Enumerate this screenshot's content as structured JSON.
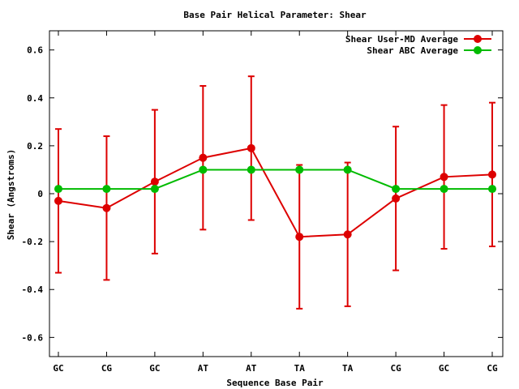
{
  "chart_data": {
    "type": "line",
    "title": "Base Pair Helical Parameter: Shear",
    "xlabel": "Sequence Base Pair",
    "ylabel": "Shear (Angstroms)",
    "categories": [
      "GC",
      "CG",
      "GC",
      "AT",
      "AT",
      "TA",
      "TA",
      "CG",
      "GC",
      "CG"
    ],
    "ylim": [
      -0.68,
      0.68
    ],
    "yticks": [
      -0.6,
      -0.4,
      -0.2,
      0,
      0.2,
      0.4,
      0.6
    ],
    "ytick_labels": [
      "-0.6",
      "-0.4",
      "-0.2",
      "0",
      "0.2",
      "0.4",
      "0.6"
    ],
    "grid": false,
    "legend_position": "top-right",
    "series": [
      {
        "name": "Shear User-MD Average",
        "color": "#dd0000",
        "values": [
          -0.03,
          -0.06,
          0.05,
          0.15,
          0.19,
          -0.18,
          -0.17,
          -0.02,
          0.07,
          0.08
        ],
        "error_low": [
          -0.33,
          -0.36,
          -0.25,
          -0.15,
          -0.11,
          -0.48,
          -0.47,
          -0.32,
          -0.23,
          -0.22
        ],
        "error_high": [
          0.27,
          0.24,
          0.35,
          0.45,
          0.49,
          0.12,
          0.13,
          0.28,
          0.37,
          0.38
        ]
      },
      {
        "name": "Shear ABC Average",
        "color": "#00bb00",
        "values": [
          0.02,
          0.02,
          0.02,
          0.1,
          0.1,
          0.1,
          0.1,
          0.02,
          0.02,
          0.02
        ]
      }
    ]
  }
}
